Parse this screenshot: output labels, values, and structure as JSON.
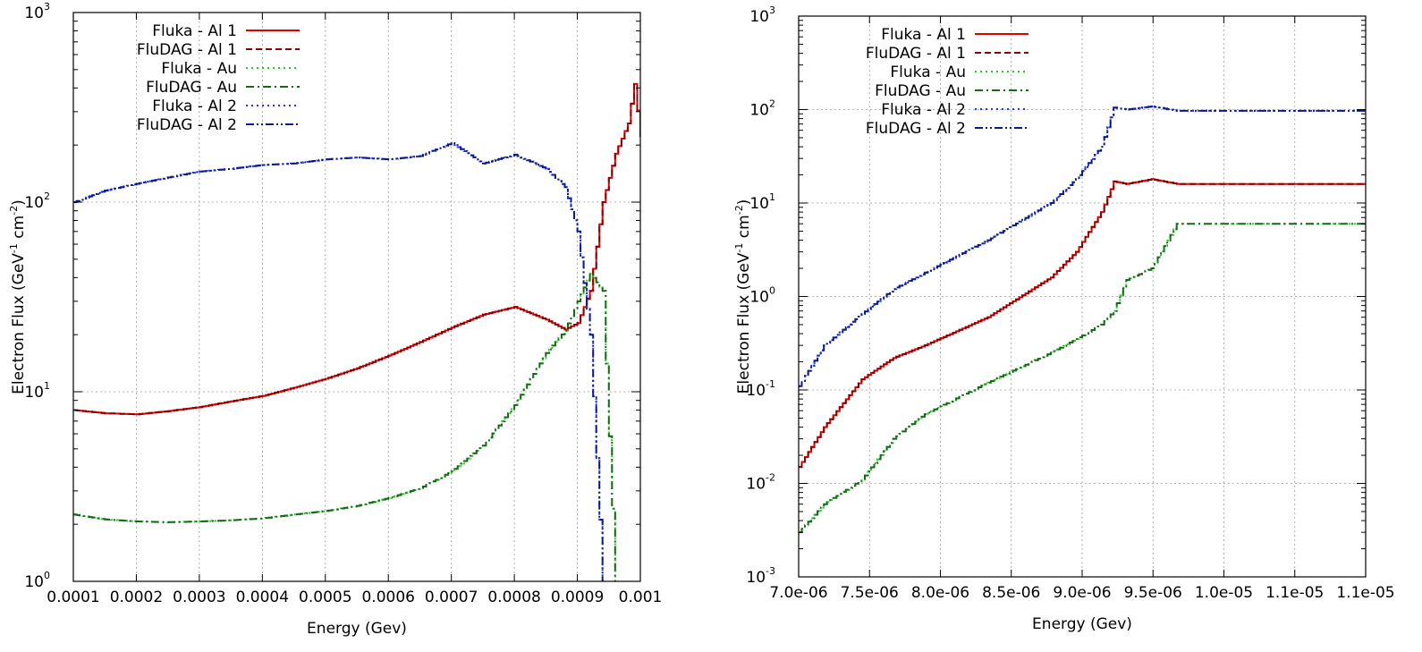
{
  "chart_data": [
    {
      "type": "line",
      "xlabel": "Energy (Gev)",
      "ylabel": "Electron Flux (GeV⁻¹ cm⁻²)",
      "ylabel_parts": {
        "pre": "Electron Flux (GeV",
        "sup1": "-1",
        "mid": " cm",
        "sup2": "-2",
        "post": ")"
      },
      "xscale": "linear",
      "yscale": "log",
      "xlim": [
        0.0001,
        0.001
      ],
      "ylim": [
        1,
        1000
      ],
      "grid": true,
      "legend_position": "top-left",
      "x_ticks": [
        "0.0001",
        "0.0002",
        "0.0003",
        "0.0004",
        "0.0005",
        "0.0006",
        "0.0007",
        "0.0008",
        "0.0009",
        "0.001"
      ],
      "y_ticks": [
        {
          "base": "10",
          "exp": "0"
        },
        {
          "base": "10",
          "exp": "1"
        },
        {
          "base": "10",
          "exp": "2"
        },
        {
          "base": "10",
          "exp": "3"
        }
      ],
      "x": [
        0.0001,
        0.00015,
        0.0002,
        0.00025,
        0.0003,
        0.00035,
        0.0004,
        0.00045,
        0.0005,
        0.00055,
        0.0006,
        0.00065,
        0.0007,
        0.00075,
        0.0008,
        0.00085,
        0.00088,
        0.0009,
        0.00092,
        0.00094,
        0.00096,
        0.00098,
        0.00099,
        0.001
      ],
      "series": [
        {
          "name": "Fluka - Al 1",
          "color": "#e00000",
          "dash": "solid",
          "values": [
            8,
            7.7,
            7.6,
            7.9,
            8.3,
            8.9,
            9.5,
            10.5,
            11.7,
            13.3,
            15.5,
            18.3,
            21.8,
            25.5,
            28,
            24,
            21.3,
            23,
            34,
            100,
            180,
            260,
            420,
            220
          ]
        },
        {
          "name": "FluDAG - Al 1",
          "color": "#8b0000",
          "dash": "dashed",
          "values": [
            8,
            7.7,
            7.6,
            7.9,
            8.3,
            8.9,
            9.5,
            10.5,
            11.7,
            13.3,
            15.5,
            18.3,
            21.8,
            25.5,
            28,
            24,
            21.3,
            23,
            34,
            100,
            180,
            260,
            420,
            220
          ]
        },
        {
          "name": "Fluka  - Au",
          "color": "#22cc22",
          "dash": "dotted",
          "values": [
            2.25,
            2.12,
            2.07,
            2.05,
            2.07,
            2.1,
            2.15,
            2.25,
            2.35,
            2.5,
            2.75,
            3.1,
            3.8,
            5.2,
            8.5,
            16,
            21,
            30,
            42,
            34,
            1,
            null,
            null,
            null
          ]
        },
        {
          "name": "FluDAG - Au",
          "color": "#156b15",
          "dash": "dashdot",
          "values": [
            2.25,
            2.12,
            2.07,
            2.05,
            2.07,
            2.1,
            2.15,
            2.25,
            2.35,
            2.5,
            2.75,
            3.1,
            3.8,
            5.2,
            8.5,
            16,
            21,
            30,
            42,
            34,
            1,
            null,
            null,
            null
          ]
        },
        {
          "name": "Fluka  - Al 2",
          "color": "#2233ff",
          "dash": "dotted",
          "values": [
            100,
            115,
            125,
            135,
            145,
            150,
            157,
            160,
            168,
            172,
            168,
            175,
            205,
            160,
            178,
            150,
            120,
            70,
            20,
            1,
            null,
            null,
            null,
            null
          ]
        },
        {
          "name": "FluDAG - Al 2",
          "color": "#0a1a8a",
          "dash": "dashdotdot",
          "values": [
            100,
            115,
            125,
            135,
            145,
            150,
            157,
            160,
            168,
            172,
            168,
            175,
            205,
            160,
            178,
            150,
            120,
            70,
            20,
            1,
            null,
            null,
            null,
            null
          ]
        }
      ]
    },
    {
      "type": "line",
      "xlabel": "Energy (Gev)",
      "ylabel": "Electron Flux (GeV⁻¹ cm⁻²)",
      "ylabel_parts": {
        "pre": "Electron Flux (GeV",
        "sup1": "-1",
        "mid": " cm",
        "sup2": "-2",
        "post": ")"
      },
      "xscale": "linear",
      "yscale": "log",
      "xlim": [
        7e-06,
        1.15e-05
      ],
      "ylim": [
        0.001,
        1000
      ],
      "grid": true,
      "legend_position": "top-left",
      "x_ticks": [
        "7.0e-06",
        "7.5e-06",
        "8.0e-06",
        "8.5e-06",
        "9.0e-06",
        "9.5e-06",
        "1.0e-05",
        "1.1e-05",
        "1.1e-05"
      ],
      "y_ticks": [
        {
          "base": "10",
          "exp": "-3"
        },
        {
          "base": "10",
          "exp": "-2"
        },
        {
          "base": "10",
          "exp": "-1"
        },
        {
          "base": "10",
          "exp": "0"
        },
        {
          "base": "10",
          "exp": "1"
        },
        {
          "base": "10",
          "exp": "2"
        },
        {
          "base": "10",
          "exp": "3"
        }
      ],
      "x": [
        7e-06,
        7.2e-06,
        7.5e-06,
        7.75e-06,
        8e-06,
        8.5e-06,
        9e-06,
        9.2e-06,
        9.4e-06,
        9.5e-06,
        9.6e-06,
        9.8e-06,
        1e-05,
        1.05e-05,
        1.1e-05,
        1.15e-05
      ],
      "series": [
        {
          "name": "Fluka - Al 1",
          "color": "#e00000",
          "dash": "solid",
          "values": [
            0.015,
            0.04,
            0.13,
            0.22,
            0.3,
            0.6,
            1.6,
            3.0,
            8,
            17,
            16,
            18,
            16,
            16,
            16,
            16
          ]
        },
        {
          "name": "FluDAG - Al 1",
          "color": "#8b0000",
          "dash": "dashed",
          "values": [
            0.015,
            0.04,
            0.13,
            0.22,
            0.3,
            0.6,
            1.6,
            3.0,
            8,
            17,
            16,
            18,
            16,
            16,
            16,
            16
          ]
        },
        {
          "name": "Fluka  - Au",
          "color": "#22cc22",
          "dash": "dotted",
          "values": [
            0.003,
            0.006,
            0.011,
            0.03,
            0.055,
            0.12,
            0.25,
            0.35,
            0.5,
            0.7,
            1.5,
            2,
            6,
            6,
            6,
            6
          ]
        },
        {
          "name": "FluDAG - Au",
          "color": "#156b15",
          "dash": "dashdot",
          "values": [
            0.003,
            0.006,
            0.011,
            0.03,
            0.055,
            0.12,
            0.25,
            0.35,
            0.5,
            0.7,
            1.5,
            2,
            6,
            6,
            6,
            6
          ]
        },
        {
          "name": "Fluka  - Al 2",
          "color": "#2233ff",
          "dash": "dotted",
          "values": [
            0.11,
            0.3,
            0.65,
            1.2,
            1.8,
            4,
            10,
            18,
            40,
            105,
            100,
            108,
            97,
            97,
            97,
            97
          ]
        },
        {
          "name": "FluDAG - Al 2",
          "color": "#0a1a8a",
          "dash": "dashdotdot",
          "values": [
            0.11,
            0.3,
            0.65,
            1.2,
            1.8,
            4,
            10,
            18,
            40,
            105,
            100,
            108,
            97,
            97,
            97,
            97
          ]
        }
      ]
    }
  ]
}
